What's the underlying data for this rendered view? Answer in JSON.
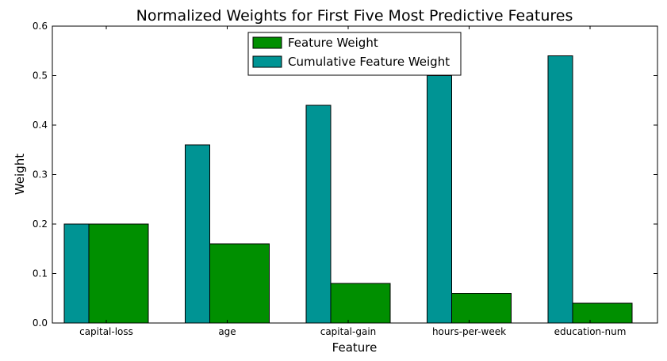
{
  "chart_data": {
    "type": "bar",
    "title": "Normalized Weights for First Five Most Predictive Features",
    "xlabel": "Feature",
    "ylabel": "Weight",
    "categories": [
      "capital-loss",
      "age",
      "capital-gain",
      "hours-per-week",
      "education-num"
    ],
    "series": [
      {
        "name": "Feature Weight",
        "values": [
          0.2,
          0.16,
          0.08,
          0.06,
          0.04
        ],
        "color": "#008f00"
      },
      {
        "name": "Cumulative Feature Weight",
        "values": [
          0.2,
          0.36,
          0.44,
          0.5,
          0.54
        ],
        "color": "#009494"
      }
    ],
    "ylim": [
      0,
      0.6
    ],
    "yticks": [
      "0.0",
      "0.1",
      "0.2",
      "0.3",
      "0.4",
      "0.5",
      "0.6"
    ],
    "grid": false,
    "legend_position": "top-center"
  }
}
